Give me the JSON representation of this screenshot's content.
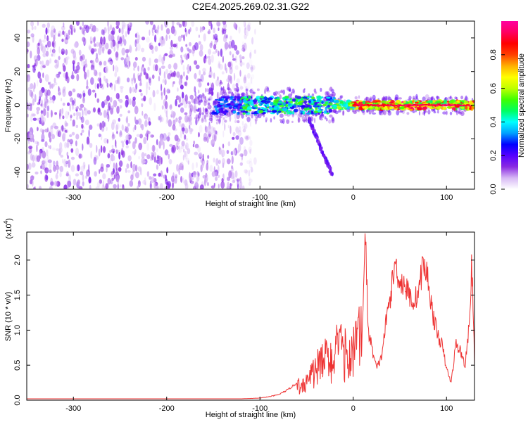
{
  "title": "C2E4.2025.269.02.31.G22",
  "chart_data": [
    {
      "type": "heatmap",
      "xlabel": "Height of straight line (km)",
      "ylabel": "Frequency (Hz)",
      "xlim": [
        -350,
        130
      ],
      "ylim": [
        -50,
        50
      ],
      "xticks": [
        -300,
        -200,
        -100,
        0,
        100
      ],
      "yticks": [
        -40,
        -20,
        0,
        20,
        40
      ],
      "colorbar": {
        "label": "Normalized spectral amplitude",
        "range": [
          0.0,
          1.0
        ],
        "ticks": [
          "0.0",
          "0.2",
          "0.4",
          "0.6",
          "0.8"
        ],
        "tick_values": [
          0.0,
          0.2,
          0.4,
          0.6,
          0.8
        ],
        "colors": [
          "#ffffff",
          "#d7b8f5",
          "#8a2be2",
          "#5500ff",
          "#0000ff",
          "#00a0ff",
          "#00ffff",
          "#00ff60",
          "#40ff00",
          "#c0ff00",
          "#ffff00",
          "#ffb000",
          "#ff4000",
          "#ff0000",
          "#ff0060",
          "#ff00a0"
        ]
      },
      "features": {
        "noise_region_x": [
          -350,
          -105
        ],
        "main_band_x": [
          -150,
          130
        ],
        "main_band_freq": 0,
        "branch": {
          "x": [
            -48,
            -22
          ],
          "freq": [
            -8,
            -42
          ]
        }
      }
    },
    {
      "type": "line",
      "xlabel": "Height of straight line (km)",
      "ylabel": "SNR (10 * v/v)",
      "scale_label": "(x10",
      "scale_exponent": "4",
      "scale_suffix": ")",
      "xlim": [
        -350,
        130
      ],
      "ylim": [
        0,
        2.4
      ],
      "xticks": [
        -300,
        -200,
        -100,
        0,
        100
      ],
      "yticks": [
        "0.0",
        "0.5",
        "1.0",
        "1.5",
        "2.0"
      ],
      "ytick_values": [
        0,
        0.5,
        1.0,
        1.5,
        2.0
      ],
      "color": "#ee3333",
      "series": [
        {
          "x": [
            -350,
            -300,
            -250,
            -200,
            -150,
            -120,
            -100,
            -90,
            -80,
            -70,
            -60,
            -55,
            -50,
            -45,
            -40,
            -35,
            -30,
            -25,
            -20,
            -15,
            -10,
            -5,
            0,
            5,
            10,
            13,
            16,
            20,
            25,
            30,
            35,
            40,
            45,
            50,
            55,
            60,
            65,
            70,
            75,
            80,
            85,
            90,
            95,
            100,
            105,
            110,
            115,
            120,
            125,
            127,
            130
          ],
          "values": [
            0.02,
            0.02,
            0.02,
            0.02,
            0.02,
            0.02,
            0.03,
            0.05,
            0.08,
            0.15,
            0.25,
            0.3,
            0.35,
            0.45,
            0.55,
            0.65,
            0.75,
            0.7,
            0.85,
            0.9,
            0.85,
            0.8,
            0.95,
            1.05,
            1.2,
            2.4,
            1.0,
            0.75,
            0.45,
            0.6,
            1.1,
            1.5,
            1.95,
            1.7,
            1.65,
            1.5,
            1.4,
            1.55,
            1.95,
            1.75,
            1.25,
            0.95,
            0.8,
            0.45,
            0.25,
            0.8,
            0.7,
            0.5,
            1.15,
            2.0,
            0.55
          ]
        }
      ]
    }
  ]
}
